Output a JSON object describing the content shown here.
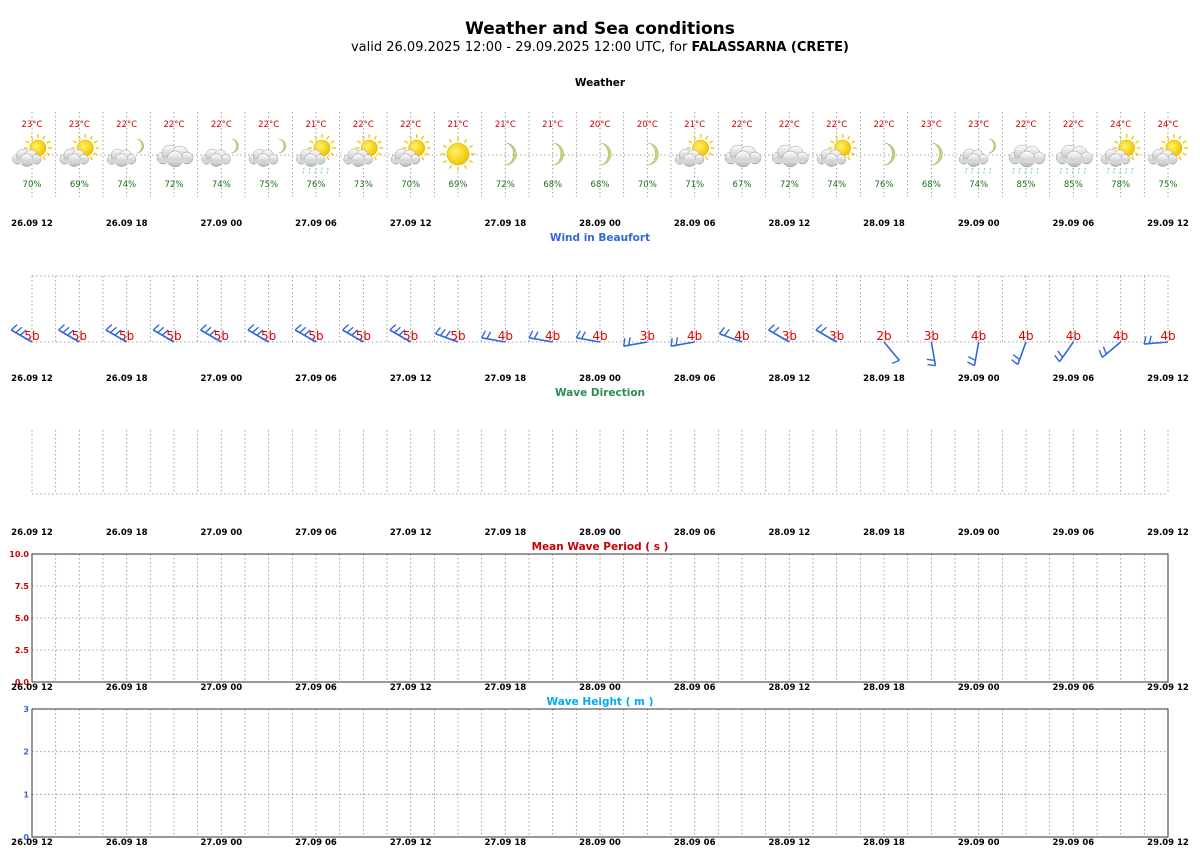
{
  "header": {
    "title": "Weather and Sea conditions",
    "subtitle_prefix": "valid 26.09.2025 12:00 - 29.09.2025 12:00 UTC, for ",
    "location": "FALASSARNA (CRETE)"
  },
  "colors": {
    "temperature": "#cc0000",
    "humidity": "#1a6e1a",
    "wind_title": "#3366dd",
    "wind_arrow": "#3366dd",
    "beaufort": "#dd0000",
    "wave_direction_title": "#2e8b57",
    "wave_period_title": "#cc0000",
    "wave_height_title": "#00aaee",
    "grid": "#888888"
  },
  "time_labels": [
    "26.09 12",
    "26.09 18",
    "27.09 00",
    "27.09 06",
    "27.09 12",
    "27.09 18",
    "28.09 00",
    "28.09 06",
    "28.09 12",
    "28.09 18",
    "29.09 00",
    "29.09 06",
    "29.09 12"
  ],
  "chart_data": [
    {
      "type": "table",
      "title": "Weather",
      "temperature": [
        "23°C",
        "23°C",
        "22°C",
        "22°C",
        "22°C",
        "22°C",
        "21°C",
        "22°C",
        "22°C",
        "21°C",
        "21°C",
        "21°C",
        "20°C",
        "20°C",
        "21°C",
        "22°C",
        "22°C",
        "22°C",
        "22°C",
        "23°C",
        "23°C",
        "22°C",
        "22°C",
        "24°C",
        "24°C"
      ],
      "humidity": [
        "70%",
        "69%",
        "74%",
        "72%",
        "74%",
        "75%",
        "76%",
        "73%",
        "70%",
        "69%",
        "72%",
        "68%",
        "68%",
        "70%",
        "71%",
        "67%",
        "72%",
        "74%",
        "76%",
        "68%",
        "74%",
        "85%",
        "85%",
        "78%",
        "75%"
      ],
      "icons": [
        "sun-cloud",
        "sun-cloud",
        "moon-cloud",
        "cloud",
        "moon-cloud",
        "moon-cloud",
        "sun-cloud-rain",
        "sun-cloud",
        "sun-cloud",
        "sun",
        "moon",
        "moon",
        "moon",
        "moon",
        "sun-cloud",
        "cloud",
        "cloud",
        "sun-cloud",
        "moon",
        "moon",
        "moon-cloud-rain",
        "cloud-rain",
        "cloud-rain",
        "sun-cloud-rain",
        "sun-cloud"
      ]
    },
    {
      "type": "scatter",
      "title": "Wind in Beaufort",
      "beaufort": [
        "5b",
        "5b",
        "5b",
        "5b",
        "5b",
        "5b",
        "5b",
        "5b",
        "5b",
        "5b",
        "4b",
        "4b",
        "4b",
        "3b",
        "4b",
        "4b",
        "3b",
        "3b",
        "2b",
        "3b",
        "4b",
        "4b",
        "4b",
        "4b",
        "4b"
      ],
      "direction_deg": [
        300,
        300,
        300,
        300,
        300,
        300,
        300,
        300,
        300,
        290,
        280,
        280,
        280,
        260,
        260,
        290,
        300,
        300,
        140,
        170,
        190,
        200,
        215,
        230,
        265
      ]
    },
    {
      "type": "line",
      "title": "Wave Direction",
      "series": []
    },
    {
      "type": "line",
      "title": "Mean Wave Period ( s )",
      "ylim": [
        0,
        10
      ],
      "yticks": [
        "0.0",
        "2.5",
        "5.0",
        "7.5",
        "10.0"
      ],
      "series": []
    },
    {
      "type": "line",
      "title": "Wave Height ( m )",
      "ylim": [
        0,
        3
      ],
      "yticks": [
        "0",
        "1",
        "2",
        "3"
      ],
      "series": []
    }
  ]
}
